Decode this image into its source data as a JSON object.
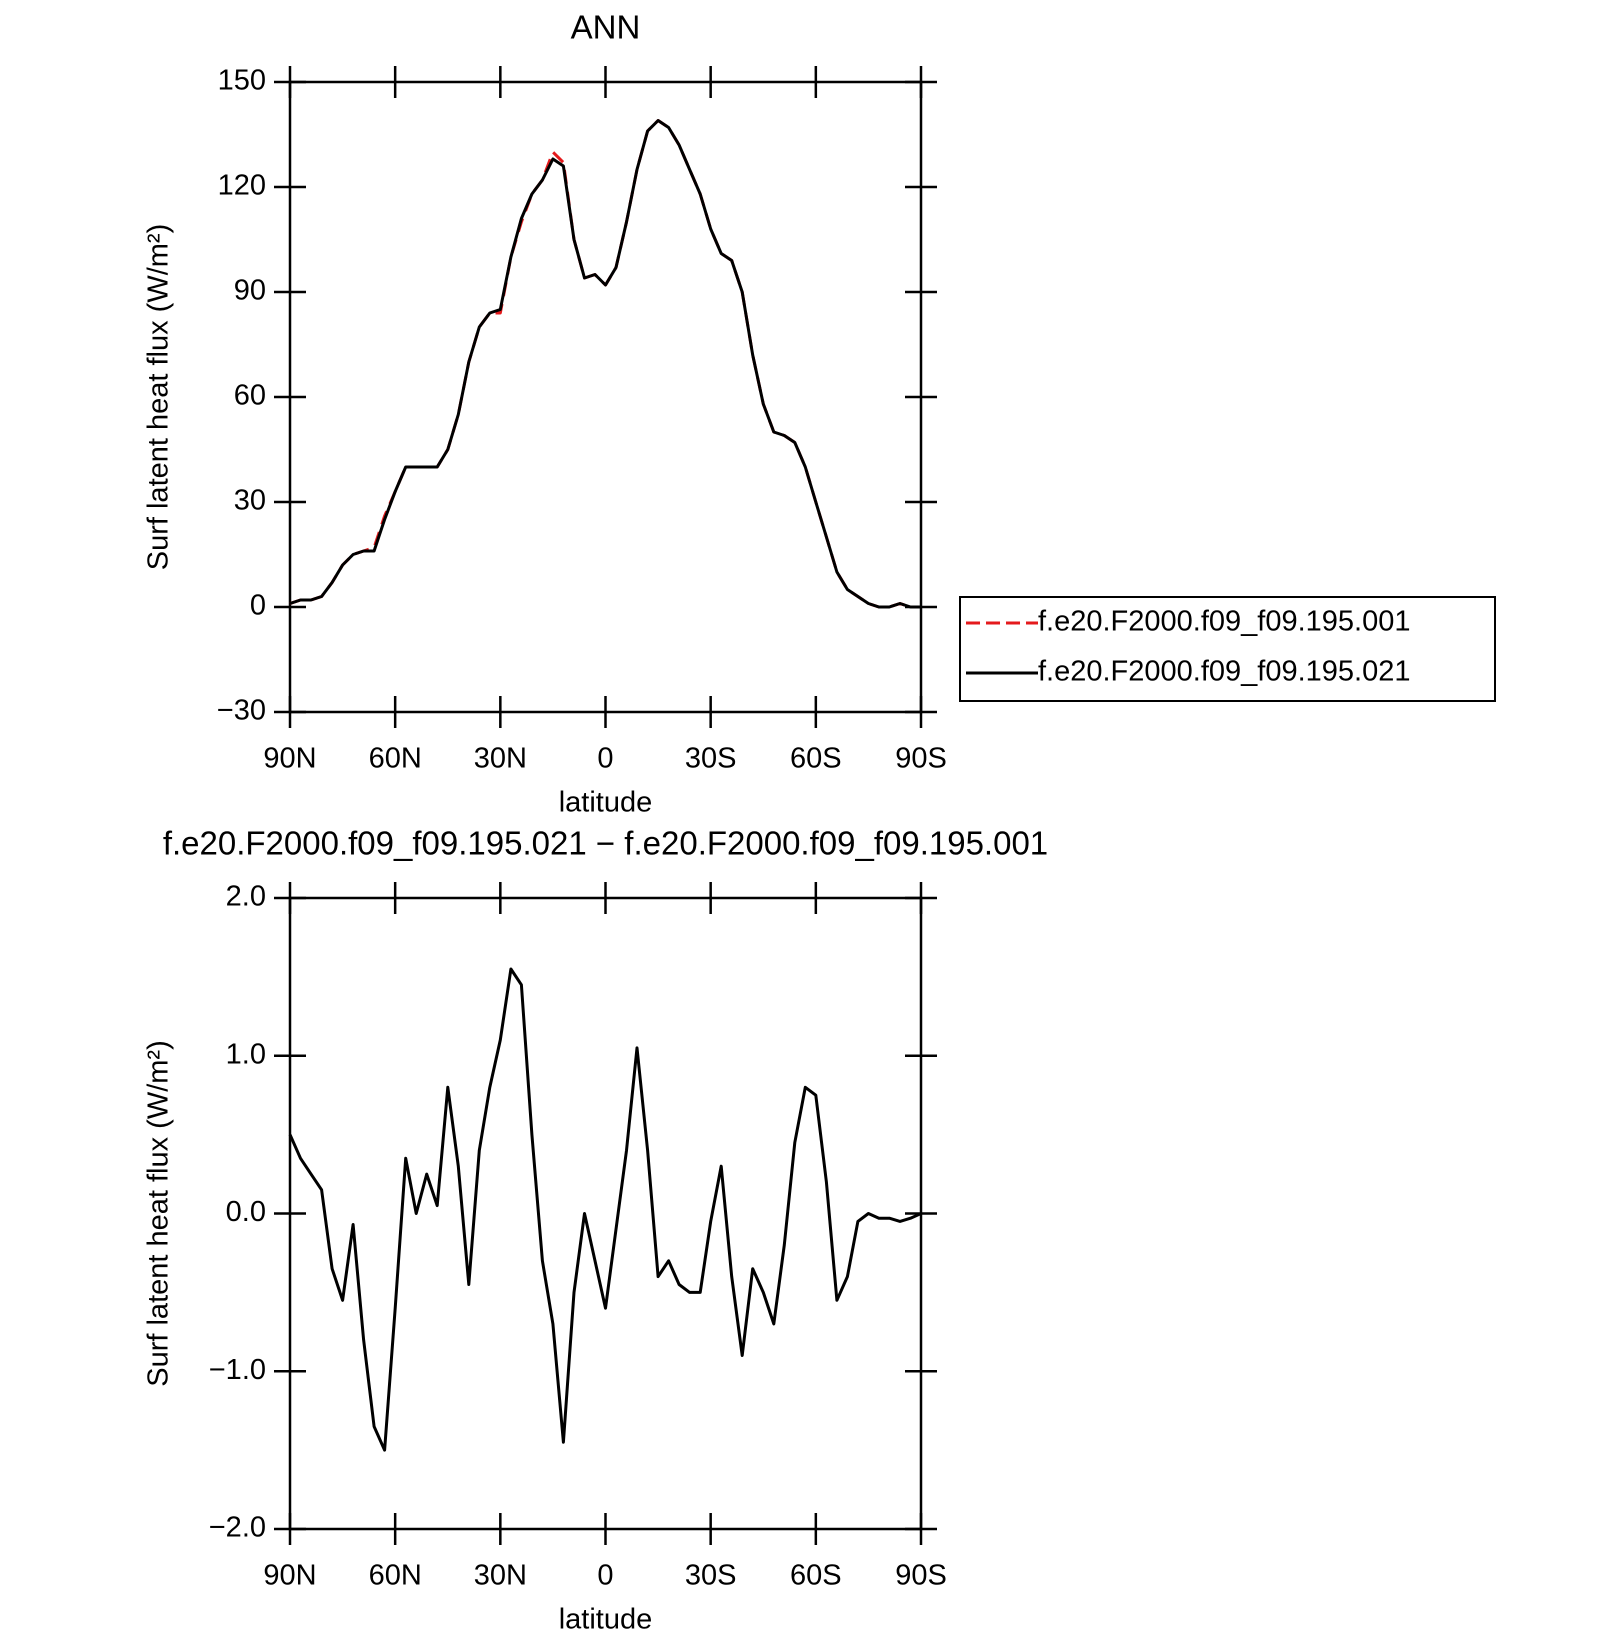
{
  "chart_data": [
    {
      "type": "line",
      "title": "ANN",
      "xlabel": "latitude",
      "ylabel": "Surf latent heat flux (W/m²)",
      "x": [
        90,
        87,
        84,
        81,
        78,
        75,
        72,
        69,
        66,
        63,
        60,
        57,
        54,
        51,
        48,
        45,
        42,
        39,
        36,
        33,
        30,
        27,
        24,
        21,
        18,
        15,
        12,
        9,
        6,
        3,
        0,
        -3,
        -6,
        -9,
        -12,
        -15,
        -18,
        -21,
        -24,
        -27,
        -30,
        -33,
        -36,
        -39,
        -42,
        -45,
        -48,
        -51,
        -54,
        -57,
        -60,
        -63,
        -66,
        -69,
        -72,
        -75,
        -78,
        -81,
        -84,
        -87,
        -90
      ],
      "series": [
        {
          "name": "f.e20.F2000.f09_f09.195.001",
          "color": "#e41a1c",
          "dash": true,
          "values": [
            1,
            2,
            2,
            3,
            7,
            12,
            15,
            16,
            17,
            26,
            33,
            40,
            40,
            40,
            40,
            45,
            55,
            70,
            80,
            84,
            84,
            100,
            110,
            118,
            122,
            130,
            127,
            105,
            94,
            95,
            92,
            97,
            110,
            125,
            136,
            139,
            137,
            132,
            125,
            118,
            108,
            101,
            99,
            90,
            72,
            58,
            50,
            49,
            47,
            40,
            30,
            20,
            10,
            5,
            3,
            1,
            0,
            0,
            1,
            0,
            0
          ]
        },
        {
          "name": "f.e20.F2000.f09_f09.195.021",
          "color": "#000000",
          "dash": false,
          "values": [
            1,
            2,
            2,
            3,
            7,
            12,
            15,
            16,
            16,
            25,
            33,
            40,
            40,
            40,
            40,
            45,
            55,
            70,
            80,
            84,
            85,
            100,
            111,
            118,
            122,
            128,
            126,
            105,
            94,
            95,
            92,
            97,
            110,
            125,
            136,
            139,
            137,
            132,
            125,
            118,
            108,
            101,
            99,
            90,
            72,
            58,
            50,
            49,
            47,
            40,
            30,
            20,
            10,
            5,
            3,
            1,
            0,
            0,
            1,
            0,
            0
          ]
        }
      ],
      "xlim": [
        90,
        -90
      ],
      "xticks": [
        {
          "value": 90,
          "label": "90N"
        },
        {
          "value": 60,
          "label": "60N"
        },
        {
          "value": 30,
          "label": "30N"
        },
        0,
        {
          "value": -30,
          "label": "30S"
        },
        {
          "value": -60,
          "label": "60S"
        },
        {
          "value": -90,
          "label": "90S"
        }
      ],
      "ylim": [
        -30,
        150
      ],
      "yticks": [
        {
          "value": -30,
          "label": "−30"
        },
        0,
        30,
        60,
        90,
        120,
        150
      ],
      "legend": "right"
    },
    {
      "type": "line",
      "title": "f.e20.F2000.f09_f09.195.021 − f.e20.F2000.f09_f09.195.001",
      "xlabel": "latitude",
      "ylabel": "Surf latent heat flux (W/m²)",
      "x": [
        90,
        87,
        84,
        81,
        78,
        75,
        72,
        69,
        66,
        63,
        60,
        57,
        54,
        51,
        48,
        45,
        42,
        39,
        36,
        33,
        30,
        27,
        24,
        21,
        18,
        15,
        12,
        9,
        6,
        3,
        0,
        -3,
        -6,
        -9,
        -12,
        -15,
        -18,
        -21,
        -24,
        -27,
        -30,
        -33,
        -36,
        -39,
        -42,
        -45,
        -48,
        -51,
        -54,
        -57,
        -60,
        -63,
        -66,
        -69,
        -72,
        -75,
        -78,
        -81,
        -84,
        -87,
        -90
      ],
      "series": [
        {
          "color": "#000000",
          "dash": false,
          "values": [
            0.5,
            0.35,
            0.25,
            0.15,
            -0.35,
            -0.55,
            -0.07,
            -0.8,
            -1.35,
            -1.5,
            -0.6,
            0.35,
            0.0,
            0.25,
            0.05,
            0.8,
            0.3,
            -0.45,
            0.4,
            0.8,
            1.1,
            1.55,
            1.45,
            0.5,
            -0.3,
            -0.7,
            -1.45,
            -0.5,
            0.0,
            -0.3,
            -0.6,
            -0.1,
            0.4,
            1.05,
            0.4,
            -0.4,
            -0.3,
            -0.45,
            -0.5,
            -0.5,
            -0.05,
            0.3,
            -0.4,
            -0.9,
            -0.35,
            -0.5,
            -0.7,
            -0.2,
            0.45,
            0.8,
            0.75,
            0.2,
            -0.55,
            -0.4,
            -0.05,
            0.0,
            -0.03,
            -0.03,
            -0.05,
            -0.03,
            0.0
          ]
        }
      ],
      "xlim": [
        90,
        -90
      ],
      "xticks": [
        {
          "value": 90,
          "label": "90N"
        },
        {
          "value": 60,
          "label": "60N"
        },
        {
          "value": 30,
          "label": "30N"
        },
        0,
        {
          "value": -30,
          "label": "30S"
        },
        {
          "value": -60,
          "label": "60S"
        },
        {
          "value": -90,
          "label": "90S"
        }
      ],
      "ylim": [
        -2,
        2
      ],
      "yticks": [
        {
          "value": -2,
          "label": "−2.0"
        },
        {
          "value": -1,
          "label": "−1.0"
        },
        {
          "value": 0,
          "label": "0.0"
        },
        {
          "value": 1,
          "label": "1.0"
        },
        {
          "value": 2,
          "label": "2.0"
        }
      ]
    }
  ]
}
